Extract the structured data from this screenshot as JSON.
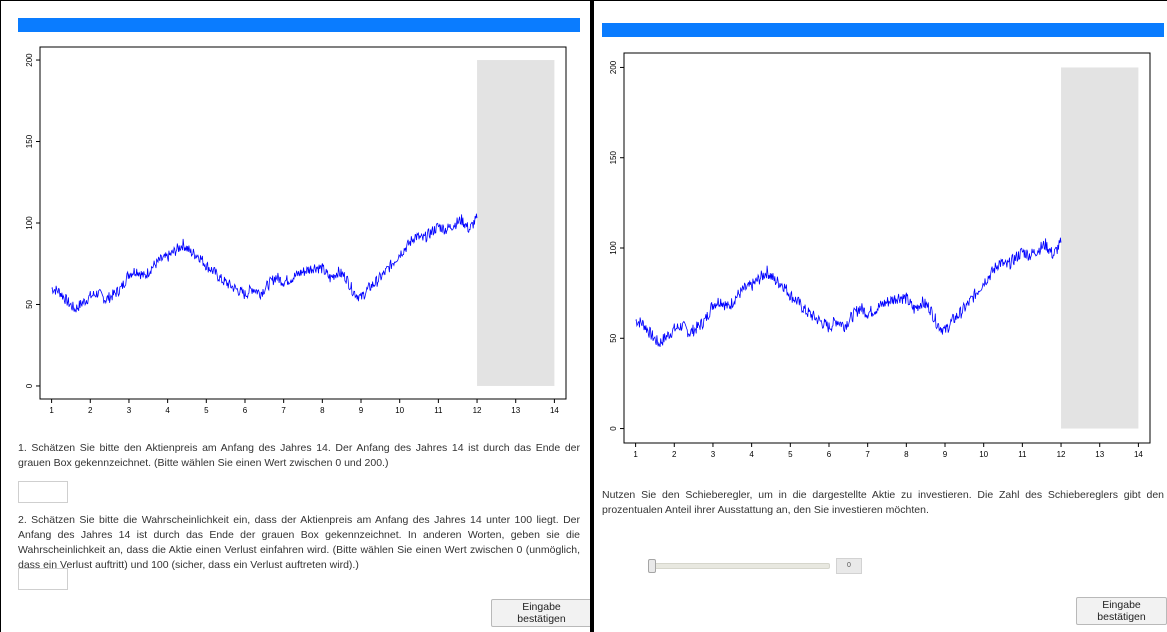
{
  "colors": {
    "header_bar": "#0a7cff",
    "price_line": "#0000ff",
    "future_box": "#e3e3e3"
  },
  "left_panel": {
    "question1": "1. Schätzen Sie bitte den Aktienpreis am Anfang des Jahres 14. Der Anfang des Jahres 14 ist durch das Ende der grauen Box gekennzeichnet. (Bitte wählen Sie einen Wert zwischen 0 und 200.)",
    "answer1_value": "",
    "question2": "2. Schätzen Sie bitte die Wahrscheinlichkeit ein, dass der Aktienpreis am Anfang des Jahres 14 unter 100 liegt. Der Anfang des Jahres 14 ist durch das Ende der grauen Box gekennzeichnet. In anderen Worten, geben sie die Wahrscheinlichkeit an, dass die Aktie einen Verlust einfahren wird. (Bitte wählen Sie einen Wert zwischen 0 (unmöglich, dass ein Verlust auftritt) und 100 (sicher, dass ein Verlust auftreten wird).)",
    "answer2_value": "",
    "submit_label": "Eingabe bestätigen"
  },
  "right_panel": {
    "instruction": "Nutzen Sie den Schieberegler, um in die dargestellte Aktie zu investieren. Die Zahl des Schiebereglers gibt den prozentualen Anteil ihrer Ausstattung an, den Sie investieren möchten.",
    "slider": {
      "value": 0,
      "min": 0,
      "max": 100,
      "value_label": "0"
    },
    "submit_label": "Eingabe bestätigen"
  },
  "chart_data": [
    {
      "type": "line",
      "xlim": [
        1,
        14
      ],
      "ylim": [
        0,
        200
      ],
      "x_ticks": [
        "1",
        "2",
        "3",
        "4",
        "5",
        "6",
        "7",
        "8",
        "9",
        "10",
        "11",
        "12",
        "13",
        "14"
      ],
      "y_ticks": [
        "0",
        "50",
        "100",
        "150",
        "200"
      ],
      "shaded_region": {
        "x": [
          12,
          14
        ],
        "y": [
          0,
          200
        ]
      },
      "series": [
        {
          "x": [
            1.0,
            1.2,
            1.4,
            1.6,
            1.8,
            2.0,
            2.2,
            2.4,
            2.6,
            2.8,
            3.0,
            3.2,
            3.4,
            3.6,
            3.8,
            4.0,
            4.2,
            4.4,
            4.6,
            4.8,
            5.0,
            5.2,
            5.4,
            5.6,
            5.8,
            6.0,
            6.2,
            6.4,
            6.6,
            6.8,
            7.0,
            7.2,
            7.4,
            7.6,
            7.8,
            8.0,
            8.2,
            8.4,
            8.6,
            8.8,
            9.0,
            9.2,
            9.4,
            9.6,
            9.8,
            10.0,
            10.2,
            10.4,
            10.6,
            10.8,
            11.0,
            11.2,
            11.4,
            11.6,
            11.8,
            12.0
          ],
          "values": [
            60,
            58,
            52,
            47,
            51,
            55,
            57,
            53,
            56,
            60,
            69,
            71,
            67,
            73,
            77,
            79,
            83,
            87,
            82,
            80,
            74,
            70,
            65,
            62,
            59,
            56,
            60,
            57,
            62,
            67,
            64,
            66,
            69,
            71,
            73,
            72,
            66,
            70,
            67,
            58,
            54,
            60,
            64,
            69,
            75,
            81,
            86,
            92,
            90,
            94,
            98,
            96,
            99,
            102,
            96,
            103
          ]
        }
      ]
    },
    {
      "type": "line",
      "xlim": [
        1,
        14
      ],
      "ylim": [
        0,
        200
      ],
      "x_ticks": [
        "1",
        "2",
        "3",
        "4",
        "5",
        "6",
        "7",
        "8",
        "9",
        "10",
        "11",
        "12",
        "13",
        "14"
      ],
      "y_ticks": [
        "0",
        "50",
        "100",
        "150",
        "200"
      ],
      "shaded_region": {
        "x": [
          12,
          14
        ],
        "y": [
          0,
          200
        ]
      },
      "series": [
        {
          "x": [
            1.0,
            1.2,
            1.4,
            1.6,
            1.8,
            2.0,
            2.2,
            2.4,
            2.6,
            2.8,
            3.0,
            3.2,
            3.4,
            3.6,
            3.8,
            4.0,
            4.2,
            4.4,
            4.6,
            4.8,
            5.0,
            5.2,
            5.4,
            5.6,
            5.8,
            6.0,
            6.2,
            6.4,
            6.6,
            6.8,
            7.0,
            7.2,
            7.4,
            7.6,
            7.8,
            8.0,
            8.2,
            8.4,
            8.6,
            8.8,
            9.0,
            9.2,
            9.4,
            9.6,
            9.8,
            10.0,
            10.2,
            10.4,
            10.6,
            10.8,
            11.0,
            11.2,
            11.4,
            11.6,
            11.8,
            12.0
          ],
          "values": [
            60,
            58,
            52,
            47,
            51,
            55,
            57,
            53,
            56,
            60,
            69,
            71,
            67,
            73,
            77,
            79,
            83,
            87,
            82,
            80,
            74,
            70,
            65,
            62,
            59,
            56,
            60,
            57,
            62,
            67,
            64,
            66,
            69,
            71,
            73,
            72,
            66,
            70,
            67,
            58,
            54,
            60,
            64,
            69,
            75,
            81,
            86,
            92,
            90,
            94,
            98,
            96,
            99,
            102,
            96,
            103
          ]
        }
      ]
    }
  ]
}
